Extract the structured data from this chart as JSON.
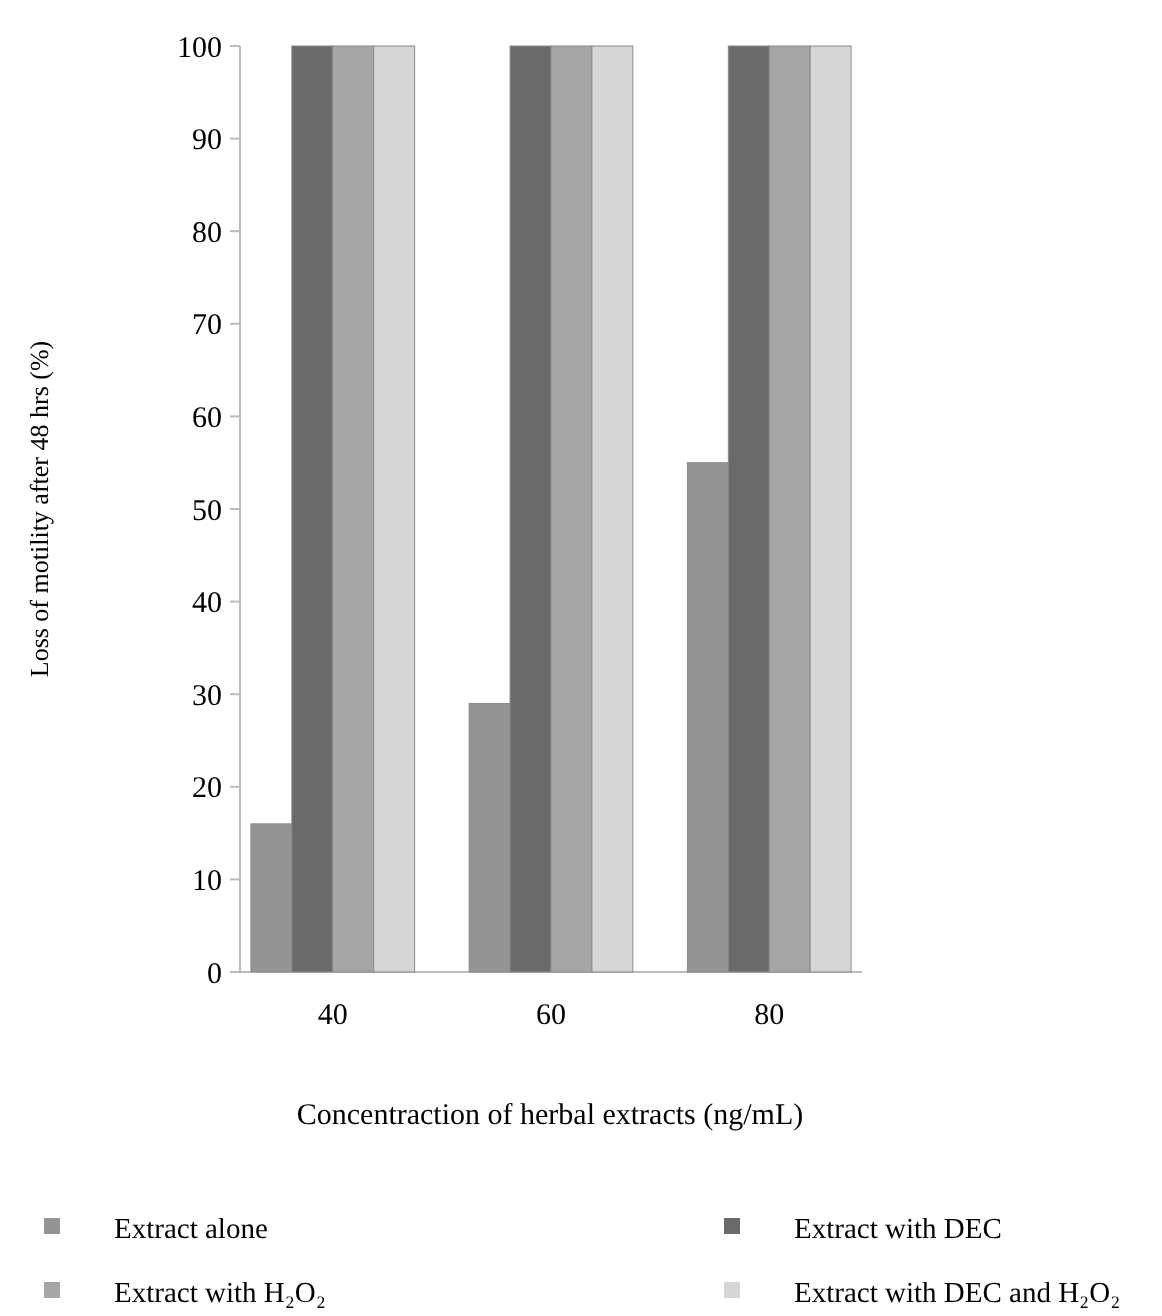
{
  "chart_data": {
    "type": "bar",
    "xlabel": "Concentraction of herbal extracts (ng/mL)",
    "ylabel": "Loss of motility after 48 hrs (%)",
    "categories": [
      "40",
      "60",
      "80"
    ],
    "series": [
      {
        "name": "Extract alone",
        "color": "#949494",
        "values": [
          16,
          29,
          55
        ]
      },
      {
        "name": "Extract with DEC",
        "color": "#6b6a6b",
        "values": [
          100,
          100,
          100
        ]
      },
      {
        "name": "Extract with H₂O₂",
        "color": "#a6a6a6",
        "values": [
          100,
          100,
          100
        ]
      },
      {
        "name": "Extract with DEC and H₂O₂",
        "color": "#d6d6d6",
        "values": [
          100,
          100,
          100
        ]
      }
    ],
    "ylim": [
      0,
      100
    ],
    "yticks": [
      0,
      10,
      20,
      30,
      40,
      50,
      60,
      70,
      80,
      90,
      100
    ],
    "grid": false,
    "legend": "bottom"
  }
}
